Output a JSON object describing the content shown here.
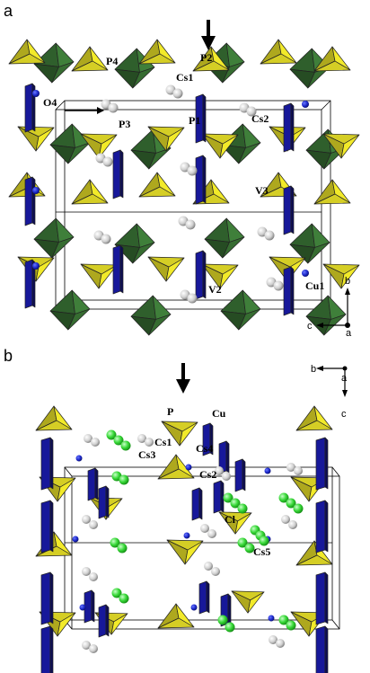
{
  "panels": [
    {
      "letter": "a",
      "labels": {
        "P4": "P4",
        "P2": "P2",
        "Cs1": "Cs1",
        "O4": "O4",
        "P3": "P3",
        "P1": "P1",
        "Cs2": "Cs2",
        "V3": "V3",
        "V2": "V2",
        "Cu1": "Cu1"
      },
      "axes": {
        "up": "b",
        "left": "c",
        "out": "a"
      }
    },
    {
      "letter": "b",
      "labels": {
        "P": "P",
        "Cu": "Cu",
        "Cs1": "Cs1",
        "Cs3": "Cs3",
        "Cs4": "Cs4",
        "Cs2": "Cs2",
        "Cl": "Cl",
        "Cs5": "Cs5"
      },
      "axes": {
        "left": "b",
        "out": "a",
        "down": "c"
      }
    }
  ],
  "colors": {
    "phosphate": "#f2ea2a",
    "vanadate": "#3f7f3a",
    "copper": "#17189a",
    "cesium": "#cfcfcf",
    "chlorine": "#3ad83a",
    "oxygen_blue": "#1b27c9"
  }
}
